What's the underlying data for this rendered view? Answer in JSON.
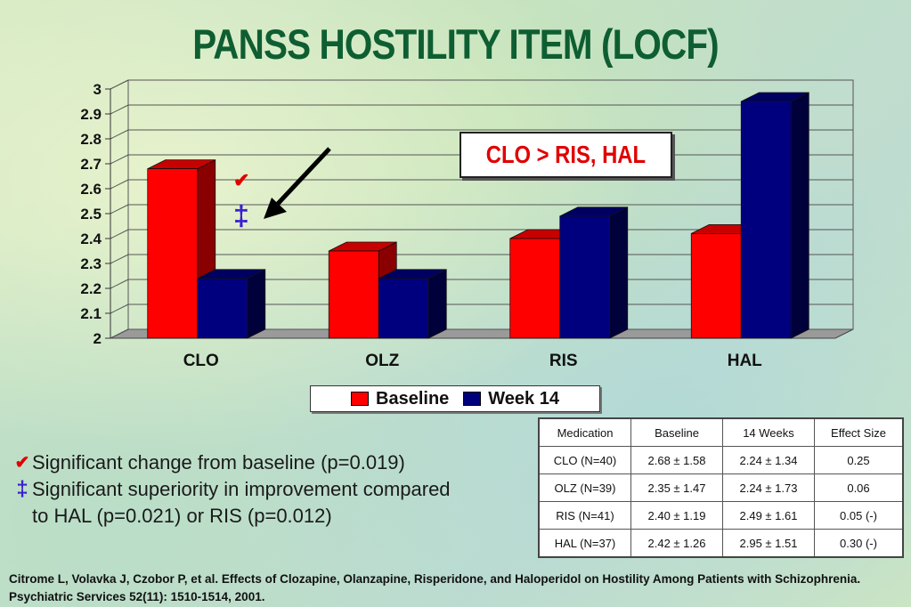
{
  "title": "PANSS HOSTILITY ITEM (LOCF)",
  "callout": "CLO > RIS, HAL",
  "markers": {
    "check": "✔",
    "dagger": "‡"
  },
  "colors": {
    "baseline": "#ff0000",
    "week14": "#00007f",
    "title": "#0e5e32",
    "dagger": "#3a1fd0"
  },
  "chart_data": {
    "type": "bar",
    "categories": [
      "CLO",
      "OLZ",
      "RIS",
      "HAL"
    ],
    "series": [
      {
        "name": "Baseline",
        "values": [
          2.68,
          2.35,
          2.4,
          2.42
        ]
      },
      {
        "name": "Week 14",
        "values": [
          2.24,
          2.24,
          2.49,
          2.95
        ]
      }
    ],
    "ylim": [
      2,
      3
    ],
    "yticks": [
      "2",
      "2.1",
      "2.2",
      "2.3",
      "2.4",
      "2.5",
      "2.6",
      "2.7",
      "2.8",
      "2.9",
      "3"
    ],
    "grid": true,
    "legend": "bottom",
    "three_d": true
  },
  "notes": [
    {
      "mark": "✔",
      "text": "Significant change from baseline (p=0.019)"
    },
    {
      "mark": "‡",
      "text": "Significant superiority in improvement compared"
    },
    {
      "mark": "",
      "text": "to HAL (p=0.021) or RIS (p=0.012)"
    }
  ],
  "table": {
    "headers": [
      "Medication",
      "Baseline",
      "14 Weeks",
      "Effect Size"
    ],
    "rows": [
      [
        "CLO (N=40)",
        "2.68 ± 1.58",
        "2.24 ± 1.34",
        "0.25"
      ],
      [
        "OLZ (N=39)",
        "2.35 ± 1.47",
        "2.24 ± 1.73",
        "0.06"
      ],
      [
        "RIS (N=41)",
        "2.40 ± 1.19",
        "2.49 ± 1.61",
        "0.05 (-)"
      ],
      [
        "HAL (N=37)",
        "2.42 ± 1.26",
        "2.95 ± 1.51",
        "0.30 (-)"
      ]
    ]
  },
  "citation": "Citrome L, Volavka J, Czobor P, et al. Effects of Clozapine, Olanzapine, Risperidone, and Haloperidol on Hostility Among Patients with Schizophrenia. Psychiatric Services 52(11): 1510-1514, 2001."
}
